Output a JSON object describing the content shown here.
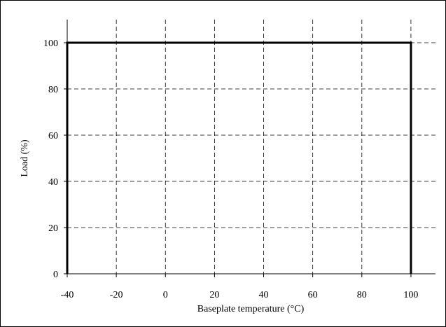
{
  "chart_data": {
    "type": "line",
    "title": "",
    "xlabel": "Baseplate temperature (°C)",
    "ylabel": "Load (%)",
    "xlim": [
      -40,
      110
    ],
    "ylim": [
      0,
      110
    ],
    "x_ticks": [
      -40,
      -20,
      0,
      20,
      40,
      60,
      80,
      100
    ],
    "x_tick_labels": [
      "-40",
      "-20",
      "0",
      "20",
      "40",
      "60",
      "80",
      "100"
    ],
    "y_ticks": [
      0,
      20,
      40,
      60,
      80,
      100
    ],
    "y_tick_labels": [
      "0",
      "20",
      "40",
      "60",
      "80",
      "100"
    ],
    "grid": true,
    "grid_style": "dashed",
    "legend": "none",
    "series": [
      {
        "x": [
          -40,
          -40,
          100,
          100
        ],
        "y": [
          0,
          100,
          100,
          0
        ],
        "color": "#000000"
      }
    ]
  }
}
